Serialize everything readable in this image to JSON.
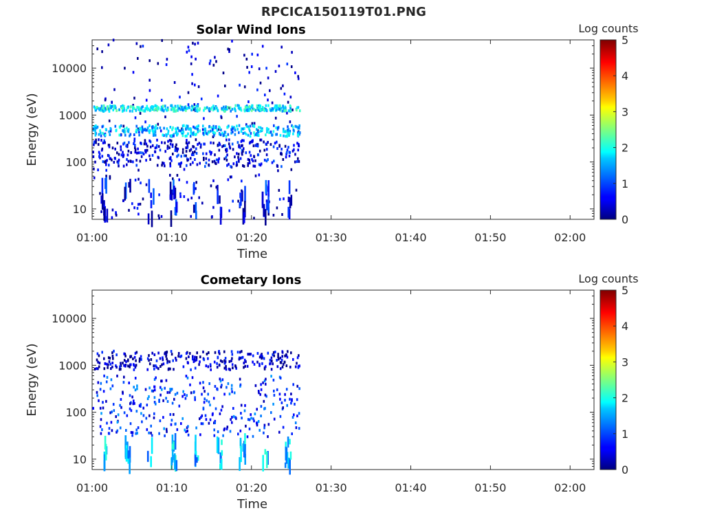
{
  "figure_title": "RPCICA150119T01.PNG",
  "chart_data": [
    {
      "type": "heatmap",
      "title": "Solar Wind Ions",
      "xlabel": "Time",
      "ylabel": "Energy (eV)",
      "xlim": [
        "01:00",
        "02:03"
      ],
      "x_ticks": [
        "01:00",
        "01:10",
        "01:20",
        "01:30",
        "01:40",
        "01:50",
        "02:00"
      ],
      "y_scale": "log",
      "ylim": [
        6,
        40000
      ],
      "y_ticks": [
        10,
        100,
        1000,
        10000
      ],
      "y_tick_labels": [
        "10",
        "100",
        "1000",
        "10000"
      ],
      "colorbar": {
        "label": "Log counts",
        "range": [
          0,
          5
        ],
        "ticks": [
          "0",
          "1",
          "2",
          "3",
          "4",
          "5"
        ],
        "colormap": "jet"
      },
      "data_coverage": [
        "01:00",
        "01:26"
      ],
      "features": [
        {
          "name": "scattered counts",
          "time": [
            "01:00",
            "01:26"
          ],
          "energy": [
            6,
            40000
          ],
          "log_counts": 0.3
        },
        {
          "name": "energy band",
          "time": [
            "01:00",
            "01:26"
          ],
          "energy": [
            80,
            300
          ],
          "log_counts": 0.5
        },
        {
          "name": "energy band",
          "time": [
            "01:00",
            "01:26"
          ],
          "energy": [
            1200,
            1600
          ],
          "log_counts": 1.8
        },
        {
          "name": "energy band",
          "time": [
            "01:00",
            "01:26"
          ],
          "energy": [
            350,
            600
          ],
          "log_counts": 1.5
        },
        {
          "name": "low energy bursts",
          "time": [
            "01:00",
            "01:26"
          ],
          "energy": [
            6,
            35
          ],
          "log_counts": 0.6
        }
      ]
    },
    {
      "type": "heatmap",
      "title": "Cometary Ions",
      "xlabel": "Time",
      "ylabel": "Energy (eV)",
      "xlim": [
        "01:00",
        "02:03"
      ],
      "x_ticks": [
        "01:00",
        "01:10",
        "01:20",
        "01:30",
        "01:40",
        "01:50",
        "02:00"
      ],
      "y_scale": "log",
      "ylim": [
        6,
        40000
      ],
      "y_ticks": [
        10,
        100,
        1000,
        10000
      ],
      "y_tick_labels": [
        "10",
        "100",
        "1000",
        "10000"
      ],
      "colorbar": {
        "label": "Log counts",
        "range": [
          0,
          5
        ],
        "ticks": [
          "0",
          "1",
          "2",
          "3",
          "4",
          "5"
        ],
        "colormap": "jet"
      },
      "data_coverage": [
        "01:00",
        "01:26"
      ],
      "features": [
        {
          "name": "broad band",
          "time": [
            "01:00",
            "01:26"
          ],
          "energy": [
            30,
            600
          ],
          "log_counts": 0.8
        },
        {
          "name": "sparse high energy",
          "time": [
            "01:00",
            "01:26"
          ],
          "energy": [
            800,
            2000
          ],
          "log_counts": 0.3
        },
        {
          "name": "low energy bursts",
          "time": [
            "01:00",
            "01:26"
          ],
          "energy": [
            7,
            25
          ],
          "log_counts": 1.6
        }
      ]
    }
  ]
}
